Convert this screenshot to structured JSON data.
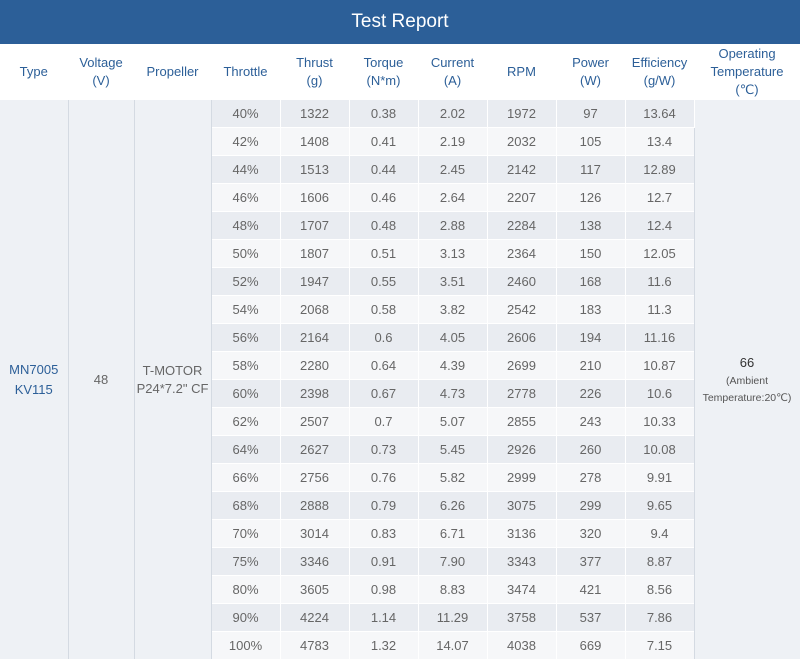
{
  "title": "Test Report",
  "headers": [
    [
      "Type"
    ],
    [
      "Voltage",
      "(V)"
    ],
    [
      "Propeller"
    ],
    [
      "Throttle"
    ],
    [
      "Thrust",
      "(g)"
    ],
    [
      "Torque",
      "(N*m)"
    ],
    [
      "Current",
      "(A)"
    ],
    [
      "RPM"
    ],
    [
      "Power",
      "(W)"
    ],
    [
      "Efficiency",
      "(g/W)"
    ],
    [
      "Operating",
      "Temperature",
      "(℃)"
    ]
  ],
  "type": [
    "MN7005",
    "KV115"
  ],
  "voltage": "48",
  "propeller": [
    "T-MOTOR",
    "P24*7.2\" CF"
  ],
  "temperature": {
    "value": "66",
    "note": [
      "(Ambient",
      "Temperature:20℃)"
    ]
  },
  "rows": [
    [
      "40%",
      "1322",
      "0.38",
      "2.02",
      "1972",
      "97",
      "13.64"
    ],
    [
      "42%",
      "1408",
      "0.41",
      "2.19",
      "2032",
      "105",
      "13.4"
    ],
    [
      "44%",
      "1513",
      "0.44",
      "2.45",
      "2142",
      "117",
      "12.89"
    ],
    [
      "46%",
      "1606",
      "0.46",
      "2.64",
      "2207",
      "126",
      "12.7"
    ],
    [
      "48%",
      "1707",
      "0.48",
      "2.88",
      "2284",
      "138",
      "12.4"
    ],
    [
      "50%",
      "1807",
      "0.51",
      "3.13",
      "2364",
      "150",
      "12.05"
    ],
    [
      "52%",
      "1947",
      "0.55",
      "3.51",
      "2460",
      "168",
      "11.6"
    ],
    [
      "54%",
      "2068",
      "0.58",
      "3.82",
      "2542",
      "183",
      "11.3"
    ],
    [
      "56%",
      "2164",
      "0.6",
      "4.05",
      "2606",
      "194",
      "11.16"
    ],
    [
      "58%",
      "2280",
      "0.64",
      "4.39",
      "2699",
      "210",
      "10.87"
    ],
    [
      "60%",
      "2398",
      "0.67",
      "4.73",
      "2778",
      "226",
      "10.6"
    ],
    [
      "62%",
      "2507",
      "0.7",
      "5.07",
      "2855",
      "243",
      "10.33"
    ],
    [
      "64%",
      "2627",
      "0.73",
      "5.45",
      "2926",
      "260",
      "10.08"
    ],
    [
      "66%",
      "2756",
      "0.76",
      "5.82",
      "2999",
      "278",
      "9.91"
    ],
    [
      "68%",
      "2888",
      "0.79",
      "6.26",
      "3075",
      "299",
      "9.65"
    ],
    [
      "70%",
      "3014",
      "0.83",
      "6.71",
      "3136",
      "320",
      "9.4"
    ],
    [
      "75%",
      "3346",
      "0.91",
      "7.90",
      "3343",
      "377",
      "8.87"
    ],
    [
      "80%",
      "3605",
      "0.98",
      "8.83",
      "3474",
      "421",
      "8.56"
    ],
    [
      "90%",
      "4224",
      "1.14",
      "11.29",
      "3758",
      "537",
      "7.86"
    ],
    [
      "100%",
      "4783",
      "1.32",
      "14.07",
      "4038",
      "669",
      "7.15"
    ]
  ]
}
